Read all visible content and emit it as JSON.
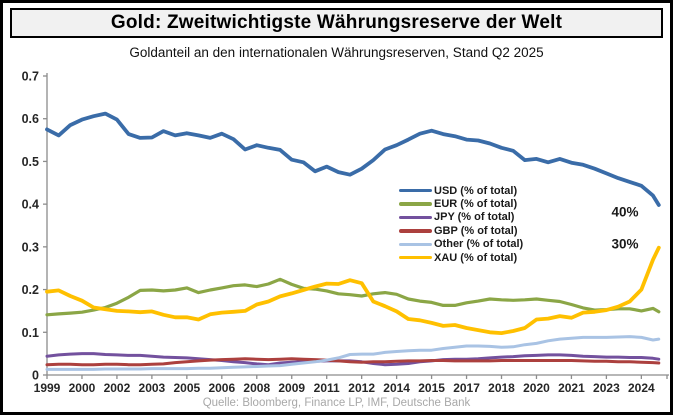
{
  "header": {
    "title": "Gold: Zweitwichtigste Währungsreserve der Welt",
    "subtitle": "Goldanteil an den internationalen Währungsreserven, Stand Q2 2025"
  },
  "footer": {
    "source": "Quelle: Bloomberg, Finance LP, IMF, Deutsche Bank"
  },
  "chart_data": {
    "type": "line",
    "title": "Goldanteil an den internationalen Währungsreserven, Stand Q2 2025",
    "xlabel": "",
    "ylabel": "",
    "grid": false,
    "legend_position": "inside-right",
    "axis_color": "#8c8c8c",
    "tick_label_color": "#262626",
    "xlim": [
      1999,
      2025.6
    ],
    "ylim": [
      0,
      0.7
    ],
    "yticks": {
      "values": [
        0.7,
        0.6,
        0.5,
        0.4,
        0.3,
        0.2,
        0.1,
        0
      ],
      "labels": [
        "0.7",
        "0.6",
        "0.5",
        "0.4",
        "0.3",
        "0.2",
        "0.1",
        "0"
      ]
    },
    "xticks": [
      {
        "label": "1999",
        "pos": 1999.0
      },
      {
        "label": "2000",
        "pos": 2000.5
      },
      {
        "label": "2002",
        "pos": 2002.0
      },
      {
        "label": "2003",
        "pos": 2003.5
      },
      {
        "label": "2005",
        "pos": 2005.0
      },
      {
        "label": "2006",
        "pos": 2006.5
      },
      {
        "label": "2008",
        "pos": 2008.0
      },
      {
        "label": "2009",
        "pos": 2009.5
      },
      {
        "label": "2011",
        "pos": 2011.0
      },
      {
        "label": "2012",
        "pos": 2012.5
      },
      {
        "label": "2014",
        "pos": 2014.0
      },
      {
        "label": "2015",
        "pos": 2015.5
      },
      {
        "label": "2017",
        "pos": 2017.0
      },
      {
        "label": "2018",
        "pos": 2018.5
      },
      {
        "label": "2020",
        "pos": 2020.0
      },
      {
        "label": "2021",
        "pos": 2021.5
      },
      {
        "label": "2023",
        "pos": 2023.0
      },
      {
        "label": "2024",
        "pos": 2024.5
      }
    ],
    "x": [
      1999.0,
      1999.5,
      2000.0,
      2000.5,
      2001.0,
      2001.5,
      2002.0,
      2002.5,
      2003.0,
      2003.5,
      2004.0,
      2004.5,
      2005.0,
      2005.5,
      2006.0,
      2006.5,
      2007.0,
      2007.5,
      2008.0,
      2008.5,
      2009.0,
      2009.5,
      2010.0,
      2010.5,
      2011.0,
      2011.5,
      2012.0,
      2012.5,
      2013.0,
      2013.5,
      2014.0,
      2014.5,
      2015.0,
      2015.5,
      2016.0,
      2016.5,
      2017.0,
      2017.5,
      2018.0,
      2018.5,
      2019.0,
      2019.5,
      2020.0,
      2020.5,
      2021.0,
      2021.5,
      2022.0,
      2022.5,
      2023.0,
      2023.5,
      2024.0,
      2024.5,
      2025.0,
      2025.25
    ],
    "series": [
      {
        "name": "USD (% of total)",
        "color": "#3A6CA8",
        "stroke_width": 3.8,
        "values": [
          0.575,
          0.561,
          0.585,
          0.598,
          0.606,
          0.612,
          0.598,
          0.564,
          0.555,
          0.556,
          0.571,
          0.561,
          0.566,
          0.561,
          0.555,
          0.565,
          0.552,
          0.528,
          0.538,
          0.532,
          0.527,
          0.504,
          0.498,
          0.477,
          0.488,
          0.475,
          0.469,
          0.483,
          0.503,
          0.528,
          0.538,
          0.551,
          0.565,
          0.572,
          0.564,
          0.559,
          0.551,
          0.549,
          0.542,
          0.532,
          0.525,
          0.503,
          0.506,
          0.498,
          0.506,
          0.497,
          0.492,
          0.483,
          0.472,
          0.461,
          0.452,
          0.443,
          0.42,
          0.398
        ]
      },
      {
        "name": "EUR (% of total)",
        "color": "#8BA646",
        "stroke_width": 3.2,
        "values": [
          0.141,
          0.143,
          0.145,
          0.147,
          0.152,
          0.158,
          0.168,
          0.182,
          0.198,
          0.199,
          0.197,
          0.199,
          0.204,
          0.193,
          0.199,
          0.204,
          0.209,
          0.211,
          0.207,
          0.213,
          0.224,
          0.212,
          0.203,
          0.201,
          0.197,
          0.19,
          0.188,
          0.185,
          0.19,
          0.193,
          0.189,
          0.178,
          0.173,
          0.17,
          0.163,
          0.163,
          0.169,
          0.173,
          0.178,
          0.176,
          0.175,
          0.176,
          0.178,
          0.175,
          0.172,
          0.165,
          0.157,
          0.152,
          0.153,
          0.155,
          0.155,
          0.15,
          0.156,
          0.148
        ]
      },
      {
        "name": "JPY (% of total)",
        "color": "#73519E",
        "stroke_width": 3.0,
        "values": [
          0.044,
          0.047,
          0.049,
          0.05,
          0.05,
          0.048,
          0.047,
          0.046,
          0.046,
          0.044,
          0.042,
          0.041,
          0.04,
          0.038,
          0.036,
          0.034,
          0.031,
          0.029,
          0.026,
          0.024,
          0.028,
          0.03,
          0.031,
          0.032,
          0.033,
          0.033,
          0.033,
          0.031,
          0.027,
          0.024,
          0.025,
          0.027,
          0.031,
          0.033,
          0.036,
          0.037,
          0.037,
          0.038,
          0.04,
          0.042,
          0.043,
          0.045,
          0.046,
          0.047,
          0.047,
          0.046,
          0.044,
          0.043,
          0.042,
          0.042,
          0.041,
          0.041,
          0.039,
          0.037
        ]
      },
      {
        "name": "GBP (% of total)",
        "color": "#AC403E",
        "stroke_width": 3.0,
        "values": [
          0.024,
          0.025,
          0.025,
          0.024,
          0.024,
          0.025,
          0.025,
          0.024,
          0.024,
          0.025,
          0.026,
          0.029,
          0.031,
          0.033,
          0.035,
          0.036,
          0.037,
          0.038,
          0.037,
          0.036,
          0.037,
          0.038,
          0.037,
          0.036,
          0.035,
          0.033,
          0.031,
          0.03,
          0.031,
          0.031,
          0.032,
          0.033,
          0.033,
          0.034,
          0.034,
          0.033,
          0.033,
          0.033,
          0.033,
          0.034,
          0.034,
          0.034,
          0.034,
          0.034,
          0.034,
          0.034,
          0.033,
          0.032,
          0.032,
          0.031,
          0.031,
          0.03,
          0.029,
          0.028
        ]
      },
      {
        "name": "Other (% of total)",
        "color": "#A9C3E4",
        "stroke_width": 3.0,
        "values": [
          0.013,
          0.013,
          0.013,
          0.013,
          0.013,
          0.014,
          0.014,
          0.014,
          0.014,
          0.015,
          0.015,
          0.015,
          0.015,
          0.016,
          0.016,
          0.017,
          0.018,
          0.019,
          0.02,
          0.021,
          0.022,
          0.025,
          0.028,
          0.031,
          0.035,
          0.04,
          0.048,
          0.049,
          0.049,
          0.053,
          0.055,
          0.057,
          0.058,
          0.058,
          0.062,
          0.065,
          0.068,
          0.068,
          0.067,
          0.065,
          0.066,
          0.071,
          0.074,
          0.08,
          0.084,
          0.086,
          0.088,
          0.088,
          0.088,
          0.089,
          0.09,
          0.088,
          0.082,
          0.084
        ]
      },
      {
        "name": "XAU (% of total)",
        "color": "#FFC000",
        "stroke_width": 3.8,
        "values": [
          0.195,
          0.198,
          0.185,
          0.174,
          0.158,
          0.154,
          0.15,
          0.149,
          0.147,
          0.149,
          0.141,
          0.135,
          0.135,
          0.13,
          0.142,
          0.146,
          0.148,
          0.15,
          0.165,
          0.172,
          0.184,
          0.191,
          0.199,
          0.207,
          0.214,
          0.213,
          0.222,
          0.215,
          0.172,
          0.161,
          0.149,
          0.131,
          0.128,
          0.122,
          0.115,
          0.117,
          0.11,
          0.105,
          0.1,
          0.098,
          0.103,
          0.11,
          0.13,
          0.132,
          0.138,
          0.134,
          0.146,
          0.148,
          0.152,
          0.16,
          0.172,
          0.2,
          0.27,
          0.298
        ]
      }
    ],
    "annotations": [
      {
        "label": "40%",
        "year": 2023.8,
        "value": 0.381
      },
      {
        "label": "30%",
        "year": 2023.8,
        "value": 0.306
      }
    ]
  }
}
